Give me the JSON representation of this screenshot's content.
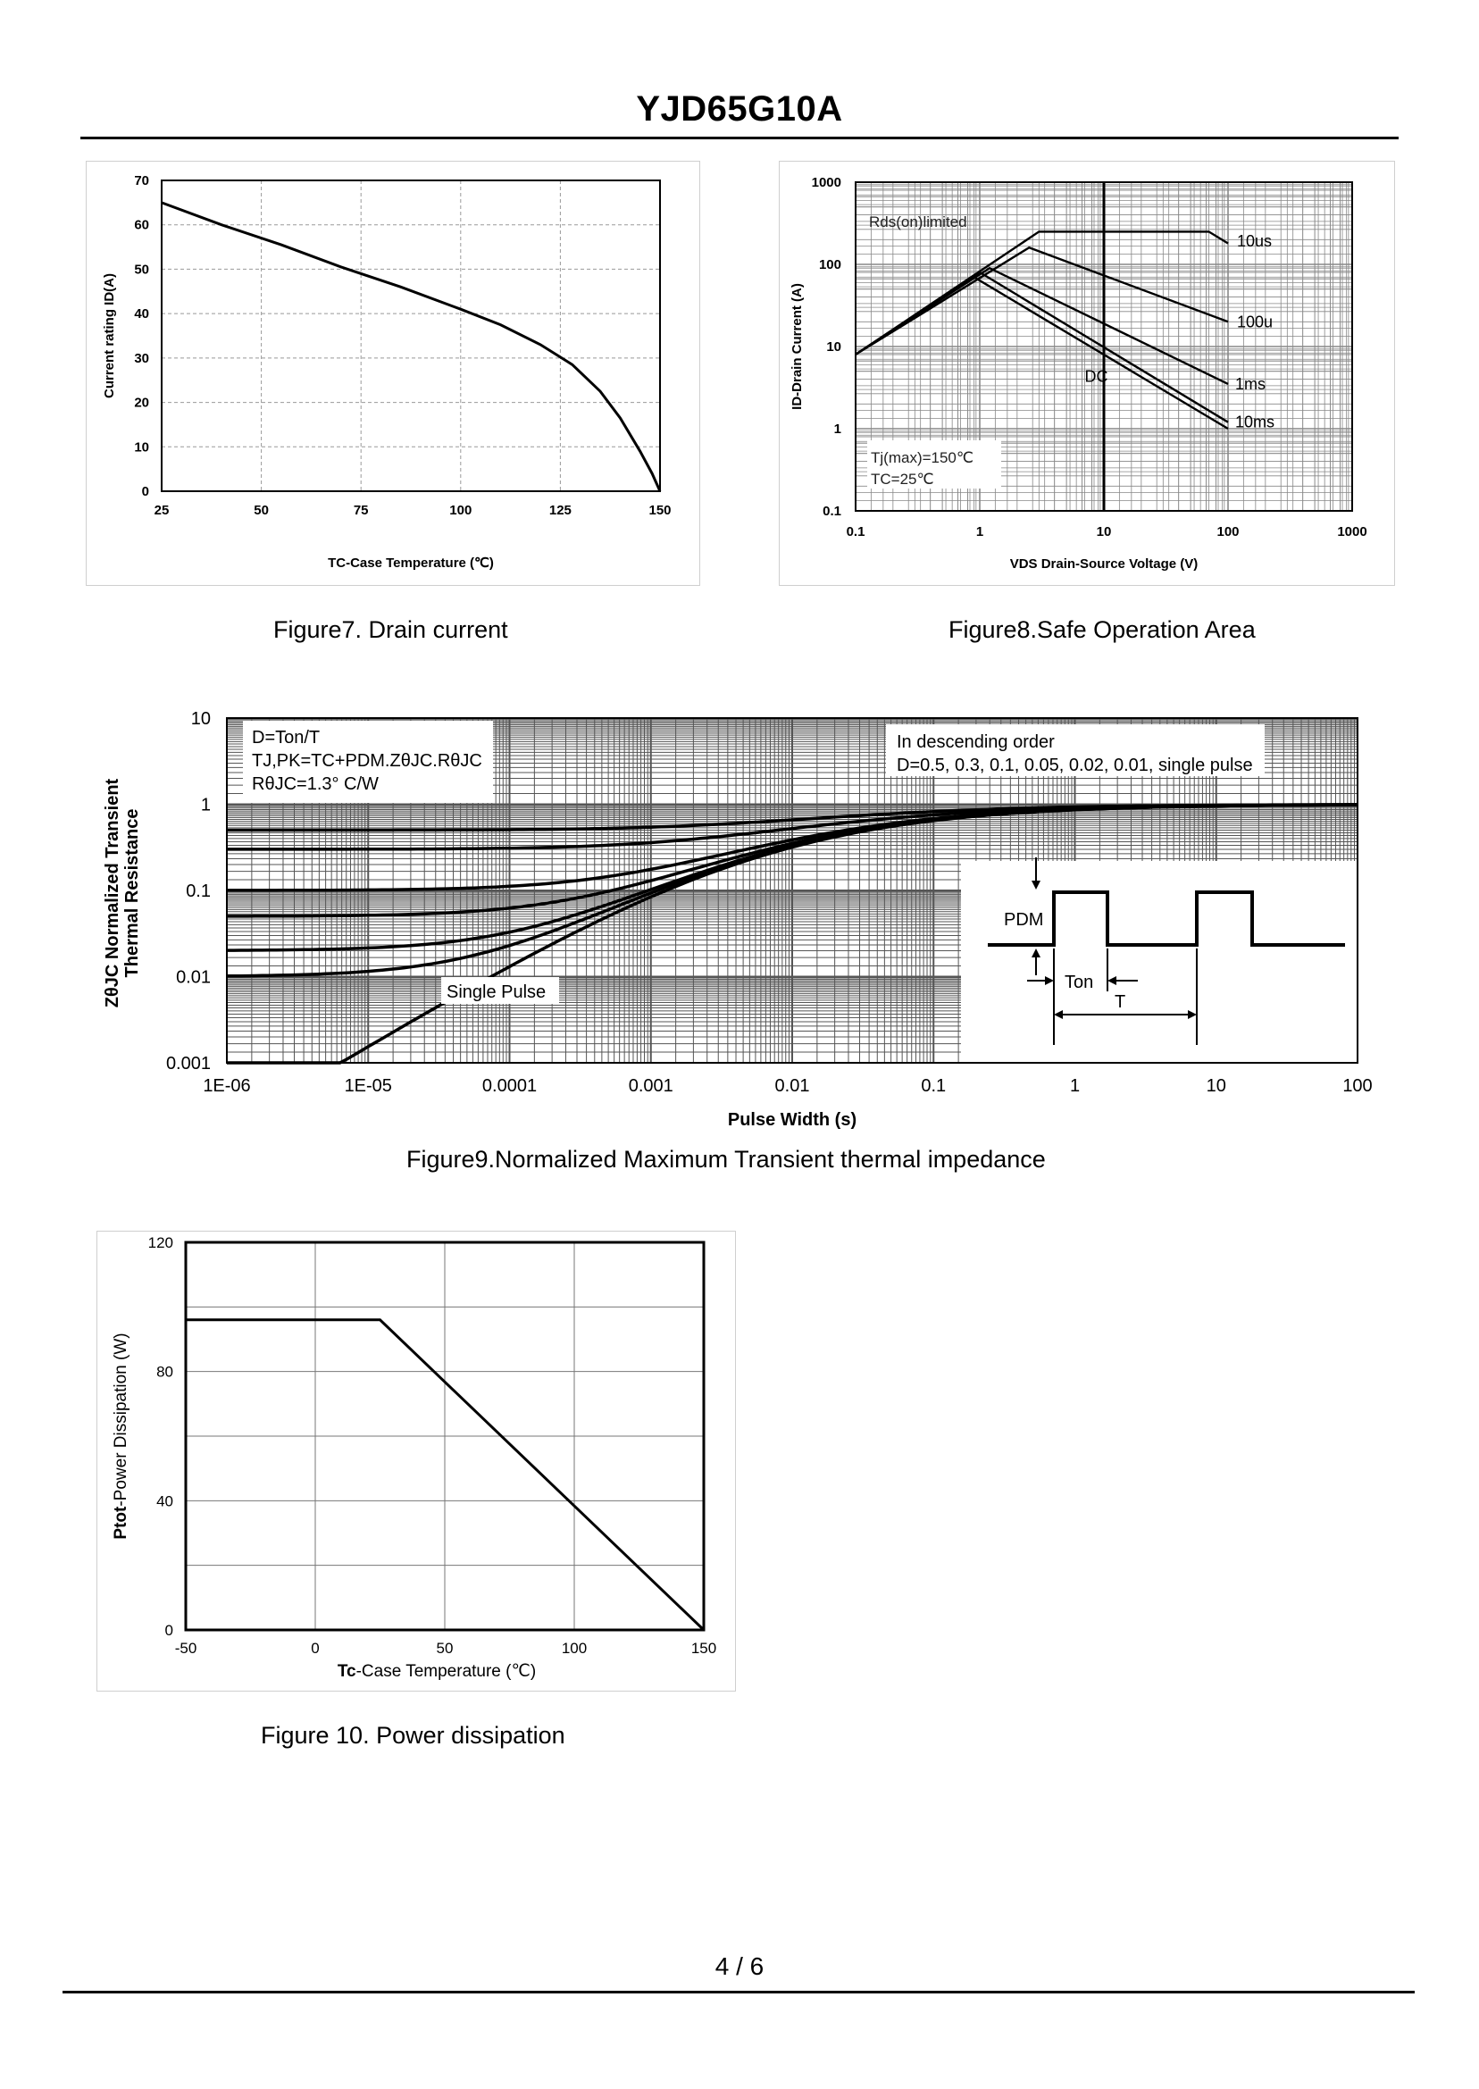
{
  "header": {
    "title": "YJD65G10A"
  },
  "footer": {
    "page": "4 / 6"
  },
  "captions": {
    "fig7": "Figure7. Drain current",
    "fig8": "Figure8.Safe Operation Area",
    "fig9": "Figure9.Normalized Maximum Transient thermal impedance",
    "fig10": "Figure 10.  Power dissipation"
  },
  "chart_data": [
    {
      "id": "fig7",
      "type": "line",
      "xlabel": "TC-Case Temperature (℃)",
      "ylabel": "Current rating ID(A)",
      "xlim": [
        25,
        150
      ],
      "ylim": [
        0,
        70
      ],
      "xticks": [
        25,
        50,
        75,
        100,
        125,
        150
      ],
      "yticks": [
        0,
        10,
        20,
        30,
        40,
        50,
        60,
        70
      ],
      "series": [
        {
          "name": "ID",
          "x": [
            25,
            40,
            55,
            70,
            85,
            100,
            110,
            120,
            128,
            135,
            140,
            145,
            148,
            150
          ],
          "y": [
            65,
            60,
            55.5,
            50.5,
            46,
            41,
            37.5,
            33,
            28.5,
            22.5,
            16.5,
            9,
            4,
            0
          ]
        }
      ]
    },
    {
      "id": "fig8",
      "type": "line",
      "xscale": "log",
      "yscale": "log",
      "xlabel": "VDS Drain-Source Voltage (V)",
      "ylabel": "ID-Drain Current (A)",
      "xlim": [
        0.1,
        1000
      ],
      "ylim": [
        0.1,
        1000
      ],
      "xticks": [
        "0.1",
        "1",
        "10",
        "100",
        "1000"
      ],
      "yticks": [
        "0.1",
        "1",
        "10",
        "100",
        "1000"
      ],
      "annotations": [
        "Rds(on)limited",
        "Tj(max)=150℃",
        "TC=25℃"
      ],
      "series": [
        {
          "name": "10us",
          "x": [
            0.1,
            3,
            10,
            70,
            100
          ],
          "y": [
            8,
            250,
            250,
            250,
            180
          ]
        },
        {
          "name": "100u",
          "x": [
            0.1,
            2.5,
            100
          ],
          "y": [
            8,
            160,
            20
          ]
        },
        {
          "name": "1ms",
          "x": [
            0.1,
            1.2,
            100
          ],
          "y": [
            8,
            90,
            3.5
          ]
        },
        {
          "name": "10ms",
          "x": [
            0.1,
            1,
            100
          ],
          "y": [
            8,
            80,
            1.2
          ]
        },
        {
          "name": "DC",
          "x": [
            0.1,
            0.9,
            100
          ],
          "y": [
            8,
            70,
            1.0
          ]
        }
      ]
    },
    {
      "id": "fig9",
      "type": "line",
      "xscale": "log",
      "yscale": "log",
      "xlabel": "Pulse Width (s)",
      "ylabel_line1": "ZθJC Normalized Transient",
      "ylabel_line2": "Thermal Resistance",
      "xlim": [
        1e-06,
        100
      ],
      "ylim": [
        0.001,
        10
      ],
      "xticks": [
        "1E-06",
        "1E-05",
        "0.0001",
        "0.001",
        "0.01",
        "0.1",
        "1",
        "10",
        "100"
      ],
      "yticks": [
        "0.001",
        "0.01",
        "0.1",
        "1",
        "10"
      ],
      "legend_left": [
        "D=Ton/T",
        "TJ,PK=TC+PDM.ZθJC.RθJC",
        "RθJC=1.3° C/W"
      ],
      "legend_right": [
        "In descending order",
        "D=0.5, 0.3, 0.1, 0.05, 0.02, 0.01, single pulse"
      ],
      "single_pulse_label": "Single Pulse",
      "inset_labels": {
        "pdm": "PDM",
        "ton": "Ton",
        "t": "T"
      },
      "series": [
        {
          "name": "D=0.5",
          "asymptote": 0.5
        },
        {
          "name": "D=0.3",
          "asymptote": 0.3
        },
        {
          "name": "D=0.1",
          "asymptote": 0.1
        },
        {
          "name": "D=0.05",
          "asymptote": 0.05
        },
        {
          "name": "D=0.02",
          "asymptote": 0.02
        },
        {
          "name": "D=0.01",
          "asymptote": 0.01
        },
        {
          "name": "single pulse",
          "asymptote": 0
        }
      ]
    },
    {
      "id": "fig10",
      "type": "line",
      "xlabel_bold": "Tc",
      "xlabel_rest": "-Case Temperature (℃)",
      "ylabel_bold": "Ptot",
      "ylabel_rest": "-Power Dissipation (W)",
      "xlim": [
        -50,
        150
      ],
      "ylim": [
        0,
        120
      ],
      "xticks": [
        -50,
        0,
        50,
        100,
        150
      ],
      "yticks": [
        0,
        40,
        80,
        120
      ],
      "series": [
        {
          "name": "Ptot",
          "x": [
            -50,
            25,
            150
          ],
          "y": [
            96,
            96,
            0
          ]
        }
      ]
    }
  ]
}
